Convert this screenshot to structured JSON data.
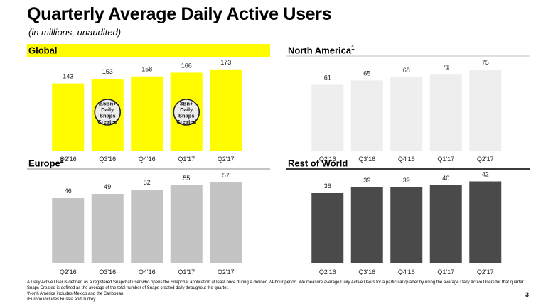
{
  "title": "Quarterly Average Daily Active Users",
  "subtitle": "(in millions, unaudited)",
  "page_number": "3",
  "footnotes": [
    "A Daily Active User is defined as a registered Snapchat user who opens the Snapchat application at least once during a defined 24-hour period.  We measure average Daily Active Users for a particular quarter by using the average Daily Active Users for that quarter.",
    "Snaps Created is defined as the average of the total number of Snaps created daily throughout the quarter.",
    "¹North America includes Mexico and the Caribbean.",
    "²Europe includes Russia and Turkey."
  ],
  "chart_data": [
    {
      "type": "bar",
      "title": "Global",
      "title_sup": "",
      "categories": [
        "Q2'16",
        "Q3'16",
        "Q4'16",
        "Q1'17",
        "Q2'17"
      ],
      "values": [
        143,
        153,
        158,
        166,
        173
      ],
      "color": "#FFFC00",
      "header_color": "#FFFC00",
      "ylim": [
        0,
        200
      ],
      "callouts": [
        {
          "category_index": 1,
          "text": [
            "2.5Bn+",
            "Daily",
            "Snaps",
            "Created"
          ]
        },
        {
          "category_index": 3,
          "text": [
            "3Bn+",
            "Daily",
            "Snaps",
            "Created"
          ]
        }
      ]
    },
    {
      "type": "bar",
      "title": "North America",
      "title_sup": "1",
      "categories": [
        "Q2'16",
        "Q3'16",
        "Q4'16",
        "Q1'17",
        "Q2'17"
      ],
      "values": [
        61,
        65,
        68,
        71,
        75
      ],
      "color": "#EEEEEE",
      "header_color": "#E0E0E0",
      "ylim": [
        0,
        87
      ]
    },
    {
      "type": "bar",
      "title": "Europe",
      "title_sup": "2",
      "categories": [
        "Q2'16",
        "Q3'16",
        "Q4'16",
        "Q1'17",
        "Q2'17"
      ],
      "values": [
        46,
        49,
        52,
        55,
        57
      ],
      "color": "#C4C4C4",
      "header_color": "#C4C4C4",
      "ylim": [
        0,
        66
      ]
    },
    {
      "type": "bar",
      "title": "Rest of World",
      "title_sup": "",
      "categories": [
        "Q2'16",
        "Q3'16",
        "Q4'16",
        "Q1'17",
        "Q2'17"
      ],
      "values": [
        36,
        39,
        39,
        40,
        42
      ],
      "color": "#4A4A4A",
      "header_color": "#3A3A3A",
      "ylim": [
        0,
        48
      ]
    }
  ]
}
